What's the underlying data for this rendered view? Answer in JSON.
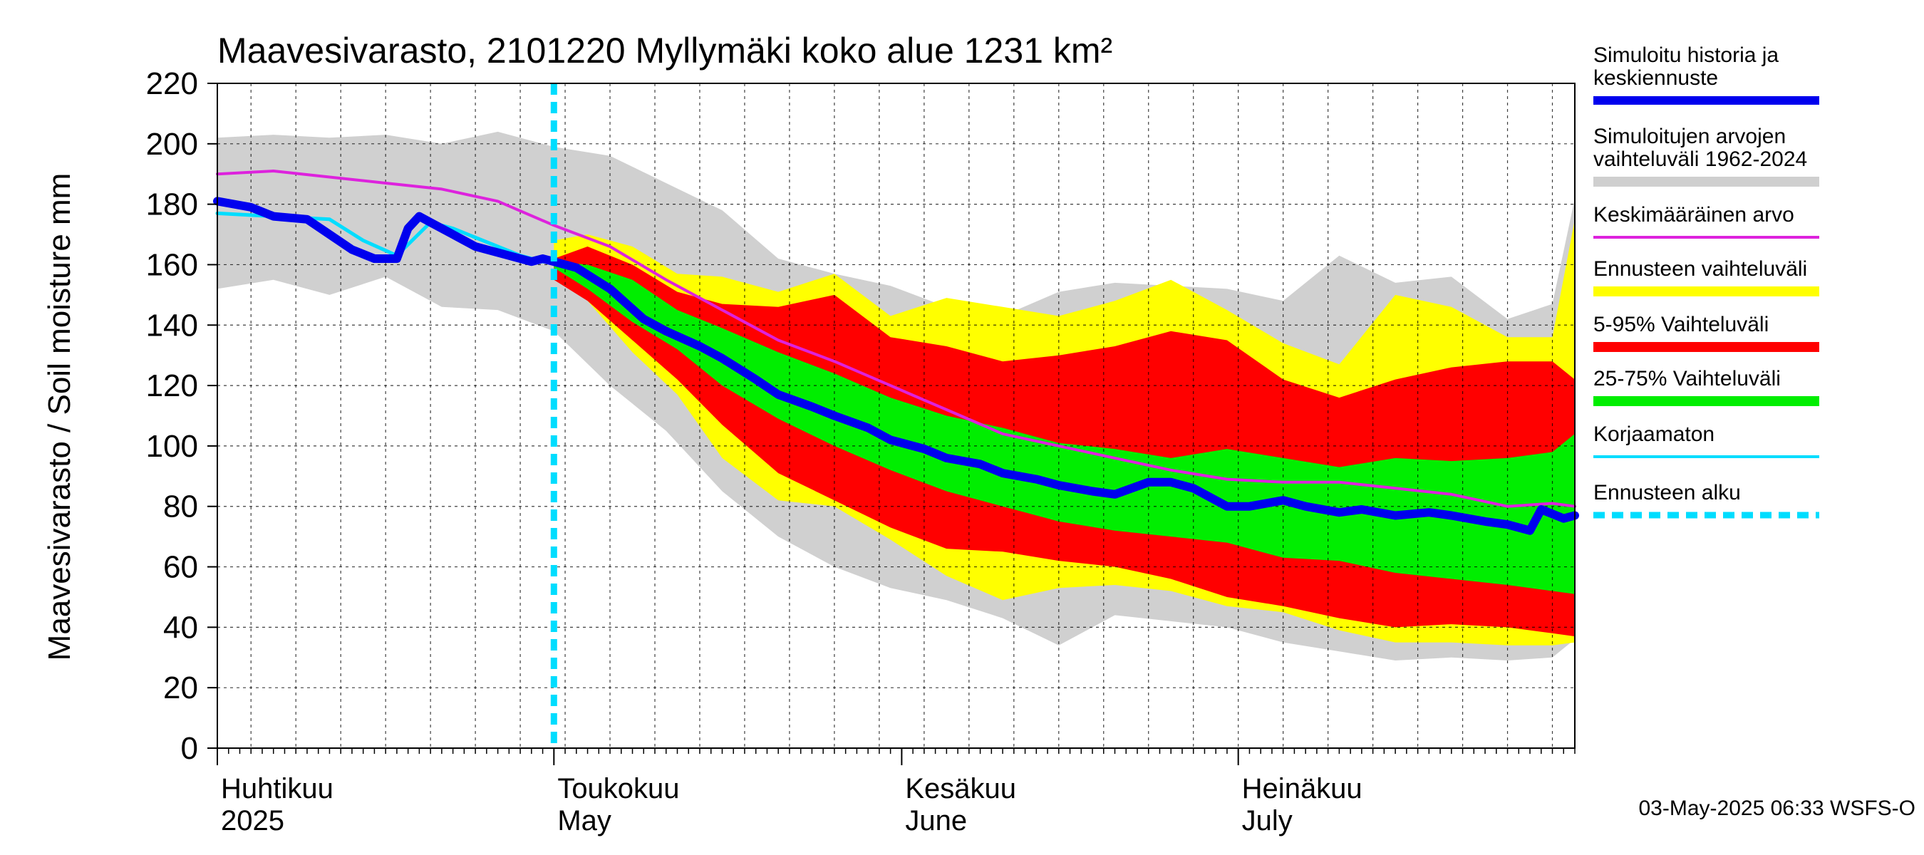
{
  "chart_data": {
    "type": "area",
    "title": "Maavesivarasto, 2101220 Myllymäki koko alue 1231 km²",
    "ylabel": "Maavesivarasto / Soil moisture   mm",
    "ylim": [
      0,
      220
    ],
    "yticks": [
      0,
      20,
      40,
      60,
      80,
      100,
      120,
      140,
      160,
      180,
      200,
      220
    ],
    "x_day_range": [
      0,
      121
    ],
    "forecast_start_day": 30,
    "months": [
      {
        "label": "Huhtikuu",
        "label2": "2025",
        "day": 0
      },
      {
        "label": "Toukokuu",
        "label2": "May",
        "day": 30
      },
      {
        "label": "Kesäkuu",
        "label2": "June",
        "day": 61
      },
      {
        "label": "Heinäkuu",
        "label2": "July",
        "day": 91
      }
    ],
    "timestamp": "03-May-2025 06:33 WSFS-O",
    "legend": [
      {
        "label": "Simuloitu historia ja",
        "label2": "keskiennuste",
        "color": "#0000ee",
        "kind": "line-thick"
      },
      {
        "label": "Simuloitujen arvojen",
        "label2": "vaihteluväli 1962-2024",
        "color": "#cfcfcf",
        "kind": "band"
      },
      {
        "label": "Keskimääräinen arvo",
        "color": "#dd22dd",
        "kind": "line"
      },
      {
        "label": "Ennusteen vaihteluväli",
        "color": "#ffff00",
        "kind": "band"
      },
      {
        "label": "5-95% Vaihteluväli",
        "color": "#ff0000",
        "kind": "band"
      },
      {
        "label": "25-75% Vaihteluväli",
        "color": "#00ee00",
        "kind": "band"
      },
      {
        "label": "Korjaamaton",
        "color": "#00ddff",
        "kind": "line"
      },
      {
        "label": "Ennusteen alku",
        "color": "#00ddff",
        "kind": "dashed"
      }
    ],
    "bands": [
      {
        "name": "Simuloitujen arvojen vaihteluväli 1962-2024",
        "color": "#d0d0d0",
        "x": [
          0,
          5,
          10,
          15,
          20,
          25,
          30,
          35,
          40,
          45,
          50,
          55,
          60,
          65,
          70,
          75,
          80,
          85,
          90,
          95,
          100,
          105,
          110,
          115,
          119,
          121
        ],
        "upper": [
          202,
          203,
          202,
          203,
          200,
          204,
          199,
          196,
          187,
          178,
          162,
          157,
          153,
          146,
          143,
          151,
          154,
          153,
          152,
          148,
          163,
          154,
          156,
          142,
          147,
          182
        ],
        "lower": [
          152,
          155,
          150,
          156,
          146,
          145,
          138,
          120,
          105,
          85,
          70,
          60,
          53,
          49,
          43,
          34,
          44,
          42,
          40,
          35,
          32,
          29,
          30,
          29,
          30,
          36
        ]
      },
      {
        "name": "Ennusteen vaihteluväli",
        "color": "#ffff00",
        "x": [
          30,
          33,
          37,
          41,
          45,
          50,
          55,
          60,
          65,
          70,
          75,
          80,
          85,
          90,
          95,
          100,
          105,
          110,
          115,
          119,
          121
        ],
        "upper": [
          168,
          170,
          166,
          157,
          156,
          151,
          157,
          143,
          149,
          146,
          143,
          148,
          155,
          145,
          134,
          127,
          150,
          146,
          136,
          136,
          175
        ],
        "lower": [
          160,
          148,
          131,
          117,
          96,
          82,
          80,
          69,
          57,
          49,
          53,
          54,
          52,
          47,
          45,
          39,
          35,
          35,
          34,
          34,
          35
        ]
      },
      {
        "name": "5-95% Vaihteluväli",
        "color": "#ff0000",
        "x": [
          30,
          33,
          37,
          41,
          45,
          50,
          55,
          60,
          65,
          70,
          75,
          80,
          85,
          90,
          95,
          100,
          105,
          110,
          115,
          119,
          121
        ],
        "upper": [
          162,
          166,
          160,
          151,
          147,
          146,
          150,
          136,
          133,
          128,
          130,
          133,
          138,
          135,
          122,
          116,
          122,
          126,
          128,
          128,
          122
        ],
        "lower": [
          155,
          148,
          135,
          122,
          107,
          91,
          82,
          73,
          66,
          65,
          62,
          60,
          56,
          50,
          47,
          43,
          40,
          41,
          40,
          38,
          37
        ]
      },
      {
        "name": "25-75% Vaihteluväli",
        "color": "#00ee00",
        "x": [
          30,
          33,
          37,
          41,
          45,
          50,
          55,
          60,
          65,
          70,
          75,
          80,
          85,
          90,
          95,
          100,
          105,
          110,
          115,
          119,
          121
        ],
        "upper": [
          161,
          160,
          155,
          145,
          139,
          131,
          124,
          116,
          110,
          106,
          101,
          99,
          96,
          99,
          96,
          93,
          96,
          95,
          96,
          98,
          104
        ],
        "lower": [
          159,
          152,
          141,
          132,
          120,
          109,
          100,
          92,
          85,
          80,
          75,
          72,
          70,
          68,
          63,
          62,
          58,
          56,
          54,
          52,
          51
        ]
      }
    ],
    "series": [
      {
        "name": "Keskimääräinen arvo",
        "color": "#dd22dd",
        "width": 4,
        "x": [
          0,
          5,
          10,
          15,
          20,
          25,
          30,
          35,
          40,
          45,
          50,
          55,
          60,
          65,
          70,
          75,
          80,
          85,
          90,
          95,
          100,
          105,
          110,
          115,
          119,
          121
        ],
        "values": [
          190,
          191,
          189,
          187,
          185,
          181,
          173,
          166,
          155,
          145,
          135,
          128,
          120,
          112,
          104,
          100,
          96,
          92,
          89,
          88,
          88,
          86,
          84,
          80,
          81,
          80
        ]
      },
      {
        "name": "Korjaamaton",
        "color": "#00ddff",
        "width": 5,
        "x": [
          0,
          5,
          10,
          13,
          16,
          19,
          21,
          23,
          25,
          27,
          29,
          30
        ],
        "values": [
          177,
          176,
          175,
          168,
          163,
          174,
          172,
          169,
          166,
          163,
          161,
          161
        ]
      },
      {
        "name": "Simuloitu historia ja keskiennuste",
        "color": "#0000ee",
        "width": 12,
        "x": [
          0,
          3,
          5,
          8,
          10,
          12,
          14,
          16,
          17,
          18,
          19,
          21,
          23,
          25,
          27,
          28,
          29,
          30,
          32,
          35,
          38,
          40,
          43,
          45,
          48,
          50,
          53,
          55,
          58,
          60,
          63,
          65,
          68,
          70,
          73,
          75,
          78,
          80,
          83,
          85,
          87,
          90,
          92,
          95,
          97,
          100,
          102,
          105,
          108,
          110,
          113,
          115,
          117,
          118,
          120,
          121
        ],
        "values": [
          181,
          179,
          176,
          175,
          170,
          165,
          162,
          162,
          172,
          176,
          174,
          170,
          166,
          164,
          162,
          161,
          162,
          161,
          159,
          152,
          142,
          138,
          133,
          129,
          122,
          117,
          113,
          110,
          106,
          102,
          99,
          96,
          94,
          91,
          89,
          87,
          85,
          84,
          88,
          88,
          86,
          80,
          80,
          82,
          80,
          78,
          79,
          77,
          78,
          77,
          75,
          74,
          72,
          79,
          76,
          77
        ]
      }
    ]
  }
}
